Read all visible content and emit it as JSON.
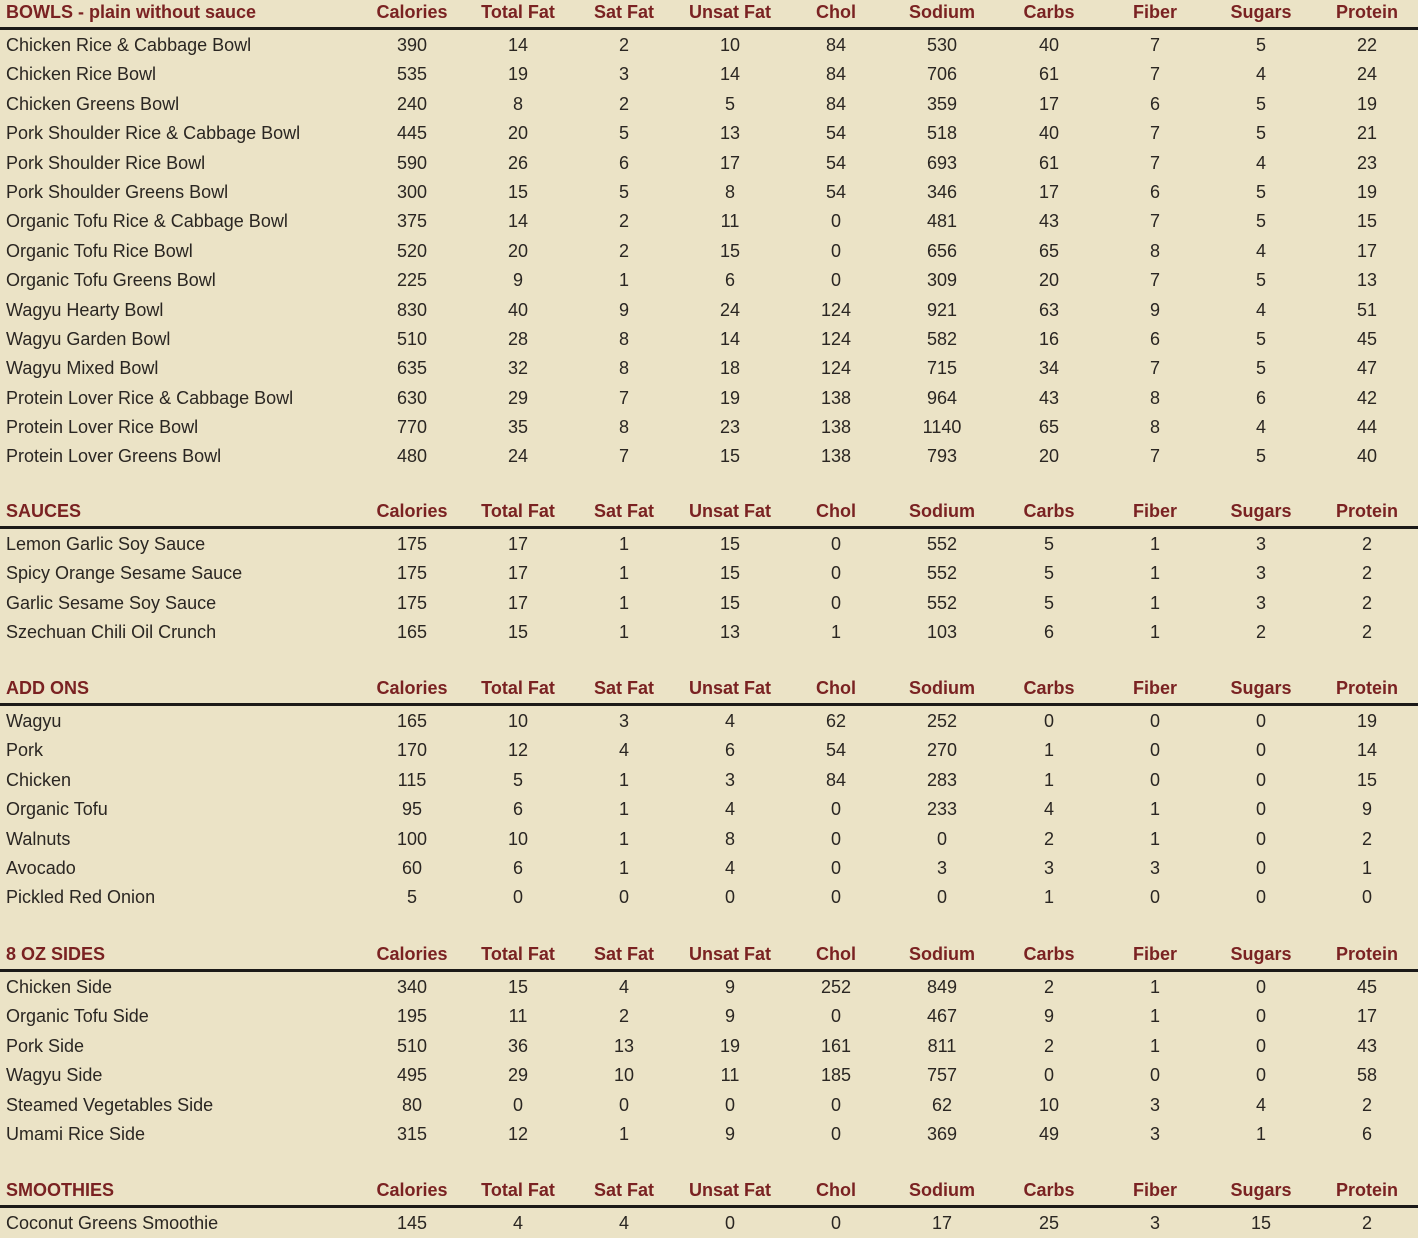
{
  "columns": [
    "Calories",
    "Total Fat",
    "Sat Fat",
    "Unsat Fat",
    "Chol",
    "Sodium",
    "Carbs",
    "Fiber",
    "Sugars",
    "Protein"
  ],
  "colors": {
    "header_text": "#7a2222",
    "background": "#ebe3c6",
    "rule": "#1c1a18",
    "body_text": "#2a2622"
  },
  "sections": [
    {
      "title": "BOWLS - plain without sauce",
      "rows": [
        {
          "name": "Chicken Rice & Cabbage Bowl",
          "v": [
            "390",
            "14",
            "2",
            "10",
            "84",
            "530",
            "40",
            "7",
            "5",
            "22"
          ]
        },
        {
          "name": "Chicken Rice Bowl",
          "v": [
            "535",
            "19",
            "3",
            "14",
            "84",
            "706",
            "61",
            "7",
            "4",
            "24"
          ]
        },
        {
          "name": "Chicken Greens Bowl",
          "v": [
            "240",
            "8",
            "2",
            "5",
            "84",
            "359",
            "17",
            "6",
            "5",
            "19"
          ]
        },
        {
          "name": "Pork Shoulder Rice & Cabbage Bowl",
          "v": [
            "445",
            "20",
            "5",
            "13",
            "54",
            "518",
            "40",
            "7",
            "5",
            "21"
          ]
        },
        {
          "name": "Pork Shoulder Rice Bowl",
          "v": [
            "590",
            "26",
            "6",
            "17",
            "54",
            "693",
            "61",
            "7",
            "4",
            "23"
          ]
        },
        {
          "name": "Pork Shoulder Greens Bowl",
          "v": [
            "300",
            "15",
            "5",
            "8",
            "54",
            "346",
            "17",
            "6",
            "5",
            "19"
          ]
        },
        {
          "name": "Organic Tofu Rice & Cabbage Bowl",
          "v": [
            "375",
            "14",
            "2",
            "11",
            "0",
            "481",
            "43",
            "7",
            "5",
            "15"
          ]
        },
        {
          "name": "Organic Tofu Rice Bowl",
          "v": [
            "520",
            "20",
            "2",
            "15",
            "0",
            "656",
            "65",
            "8",
            "4",
            "17"
          ]
        },
        {
          "name": "Organic Tofu Greens Bowl",
          "v": [
            "225",
            "9",
            "1",
            "6",
            "0",
            "309",
            "20",
            "7",
            "5",
            "13"
          ]
        },
        {
          "name": "Wagyu Hearty Bowl",
          "v": [
            "830",
            "40",
            "9",
            "24",
            "124",
            "921",
            "63",
            "9",
            "4",
            "51"
          ]
        },
        {
          "name": "Wagyu Garden Bowl",
          "v": [
            "510",
            "28",
            "8",
            "14",
            "124",
            "582",
            "16",
            "6",
            "5",
            "45"
          ]
        },
        {
          "name": "Wagyu Mixed Bowl",
          "v": [
            "635",
            "32",
            "8",
            "18",
            "124",
            "715",
            "34",
            "7",
            "5",
            "47"
          ]
        },
        {
          "name": "Protein Lover Rice & Cabbage Bowl",
          "v": [
            "630",
            "29",
            "7",
            "19",
            "138",
            "964",
            "43",
            "8",
            "6",
            "42"
          ]
        },
        {
          "name": "Protein Lover Rice Bowl",
          "v": [
            "770",
            "35",
            "8",
            "23",
            "138",
            "1140",
            "65",
            "8",
            "4",
            "44"
          ]
        },
        {
          "name": "Protein Lover Greens Bowl",
          "v": [
            "480",
            "24",
            "7",
            "15",
            "138",
            "793",
            "20",
            "7",
            "5",
            "40"
          ]
        }
      ]
    },
    {
      "title": "SAUCES",
      "rows": [
        {
          "name": "Lemon Garlic Soy Sauce",
          "v": [
            "175",
            "17",
            "1",
            "15",
            "0",
            "552",
            "5",
            "1",
            "3",
            "2"
          ]
        },
        {
          "name": "Spicy Orange Sesame Sauce",
          "v": [
            "175",
            "17",
            "1",
            "15",
            "0",
            "552",
            "5",
            "1",
            "3",
            "2"
          ]
        },
        {
          "name": "Garlic Sesame Soy Sauce",
          "v": [
            "175",
            "17",
            "1",
            "15",
            "0",
            "552",
            "5",
            "1",
            "3",
            "2"
          ]
        },
        {
          "name": "Szechuan Chili Oil Crunch",
          "v": [
            "165",
            "15",
            "1",
            "13",
            "1",
            "103",
            "6",
            "1",
            "2",
            "2"
          ]
        }
      ]
    },
    {
      "title": "ADD ONS",
      "rows": [
        {
          "name": "Wagyu",
          "v": [
            "165",
            "10",
            "3",
            "4",
            "62",
            "252",
            "0",
            "0",
            "0",
            "19"
          ]
        },
        {
          "name": "Pork",
          "v": [
            "170",
            "12",
            "4",
            "6",
            "54",
            "270",
            "1",
            "0",
            "0",
            "14"
          ]
        },
        {
          "name": "Chicken",
          "v": [
            "115",
            "5",
            "1",
            "3",
            "84",
            "283",
            "1",
            "0",
            "0",
            "15"
          ]
        },
        {
          "name": "Organic Tofu",
          "v": [
            "95",
            "6",
            "1",
            "4",
            "0",
            "233",
            "4",
            "1",
            "0",
            "9"
          ]
        },
        {
          "name": "Walnuts",
          "v": [
            "100",
            "10",
            "1",
            "8",
            "0",
            "0",
            "2",
            "1",
            "0",
            "2"
          ]
        },
        {
          "name": "Avocado",
          "v": [
            "60",
            "6",
            "1",
            "4",
            "0",
            "3",
            "3",
            "3",
            "0",
            "1"
          ]
        },
        {
          "name": "Pickled Red Onion",
          "v": [
            "5",
            "0",
            "0",
            "0",
            "0",
            "0",
            "1",
            "0",
            "0",
            "0"
          ]
        }
      ]
    },
    {
      "title": "8 OZ SIDES",
      "rows": [
        {
          "name": "Chicken Side",
          "v": [
            "340",
            "15",
            "4",
            "9",
            "252",
            "849",
            "2",
            "1",
            "0",
            "45"
          ]
        },
        {
          "name": "Organic Tofu Side",
          "v": [
            "195",
            "11",
            "2",
            "9",
            "0",
            "467",
            "9",
            "1",
            "0",
            "17"
          ]
        },
        {
          "name": "Pork Side",
          "v": [
            "510",
            "36",
            "13",
            "19",
            "161",
            "811",
            "2",
            "1",
            "0",
            "43"
          ]
        },
        {
          "name": "Wagyu Side",
          "v": [
            "495",
            "29",
            "10",
            "11",
            "185",
            "757",
            "0",
            "0",
            "0",
            "58"
          ]
        },
        {
          "name": "Steamed Vegetables Side",
          "v": [
            "80",
            "0",
            "0",
            "0",
            "0",
            "62",
            "10",
            "3",
            "4",
            "2"
          ]
        },
        {
          "name": "Umami Rice Side",
          "v": [
            "315",
            "12",
            "1",
            "9",
            "0",
            "369",
            "49",
            "3",
            "1",
            "6"
          ]
        }
      ]
    },
    {
      "title": "SMOOTHIES",
      "rows": [
        {
          "name": "Coconut Greens Smoothie",
          "v": [
            "145",
            "4",
            "4",
            "0",
            "0",
            "17",
            "25",
            "3",
            "15",
            "2"
          ]
        }
      ]
    }
  ]
}
